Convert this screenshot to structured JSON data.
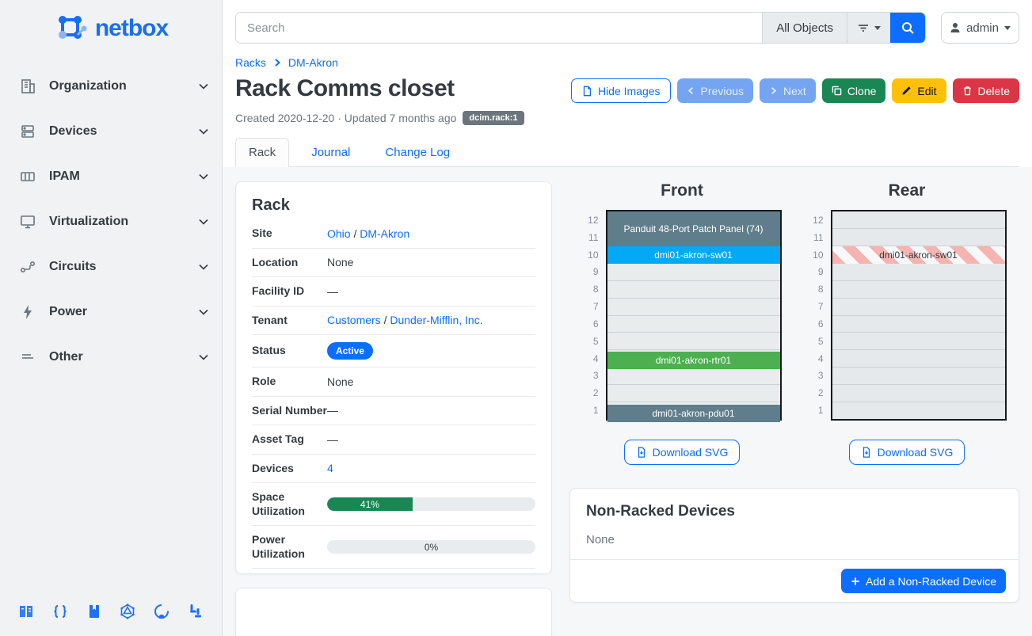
{
  "sidebar": {
    "logo_text": "netbox",
    "items": [
      {
        "label": "Organization",
        "icon": "building-icon"
      },
      {
        "label": "Devices",
        "icon": "server-icon"
      },
      {
        "label": "IPAM",
        "icon": "ip-grid-icon"
      },
      {
        "label": "Virtualization",
        "icon": "monitor-icon"
      },
      {
        "label": "Circuits",
        "icon": "transit-icon"
      },
      {
        "label": "Power",
        "icon": "lightning-icon"
      },
      {
        "label": "Other",
        "icon": "lines-icon"
      }
    ],
    "dock_icons": [
      "docs-book-icon",
      "code-braces-icon",
      "api-docs-icon",
      "graphql-icon",
      "github-icon",
      "slack-icon"
    ]
  },
  "topbar": {
    "search_placeholder": "Search",
    "scope_button": "All Objects",
    "user": "admin"
  },
  "breadcrumb": [
    "Racks",
    "DM-Akron"
  ],
  "page": {
    "title": "Rack Comms closet",
    "meta": "Created 2020-12-20 · Updated 7 months ago",
    "id_badge": "dcim.rack:1",
    "actions": {
      "hide_images": "Hide Images",
      "previous": "Previous",
      "next": "Next",
      "clone": "Clone",
      "edit": "Edit",
      "delete": "Delete"
    }
  },
  "tabs": [
    {
      "label": "Rack",
      "active": true
    },
    {
      "label": "Journal",
      "active": false
    },
    {
      "label": "Change Log",
      "active": false
    }
  ],
  "rack_panel": {
    "title": "Rack",
    "site": {
      "label": "Site",
      "link1": "Ohio",
      "sep": "/",
      "link2": "DM-Akron"
    },
    "location": {
      "label": "Location",
      "value": "None"
    },
    "facility_id": {
      "label": "Facility ID",
      "value": "—"
    },
    "tenant": {
      "label": "Tenant",
      "link1": "Customers",
      "sep": "/",
      "link2": "Dunder-Mifflin, Inc."
    },
    "status": {
      "label": "Status",
      "badge": "Active",
      "badge_color": "#0d6efd"
    },
    "role": {
      "label": "Role",
      "value": "None"
    },
    "serial": {
      "label": "Serial Number",
      "value": "—"
    },
    "asset_tag": {
      "label": "Asset Tag",
      "value": "—"
    },
    "devices": {
      "label": "Devices",
      "link": "4"
    },
    "space_utilization": {
      "label": "Space Utilization",
      "percent": "41%",
      "width": "41%",
      "fill_color": "#198754"
    },
    "power_utilization": {
      "label": "Power Utilization",
      "percent": "0%",
      "width": "0%"
    }
  },
  "rack_units": [
    "12",
    "11",
    "10",
    "9",
    "8",
    "7",
    "6",
    "5",
    "4",
    "3",
    "2",
    "1"
  ],
  "elevations": {
    "front": {
      "title": "Front",
      "download_label": "Download SVG",
      "devices": [
        {
          "name": "Panduit 48-Port Patch Panel (74)",
          "units": "11-12",
          "color": "#607d8b"
        },
        {
          "name": "dmi01-akron-sw01",
          "units": "10",
          "color": "#03a9f4"
        },
        {
          "name": "dmi01-akron-rtr01",
          "units": "4",
          "color": "#4caf50"
        },
        {
          "name": "dmi01-akron-pdu01",
          "units": "1",
          "color": "#607d8b"
        }
      ]
    },
    "rear": {
      "title": "Rear",
      "download_label": "Download SVG",
      "devices": [
        {
          "name": "dmi01-akron-sw01",
          "units": "10",
          "pattern": "diagonal-stripes",
          "stripe_color": "#f6b4b0"
        }
      ]
    }
  },
  "non_racked": {
    "title": "Non-Racked Devices",
    "empty_text": "None",
    "add_button": "Add a Non-Racked Device"
  }
}
